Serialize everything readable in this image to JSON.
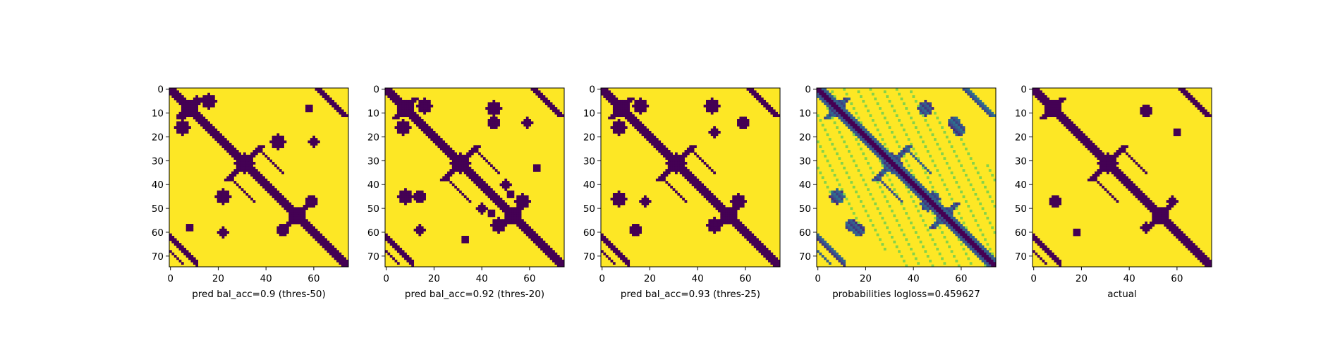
{
  "chart_data": [
    {
      "type": "heatmap",
      "xlabel": "pred bal_acc=0.9 (thres-50)",
      "matrix_size": 75,
      "colormap": "viridis-binary",
      "xticks": [
        0,
        20,
        40,
        60
      ],
      "yticks": [
        0,
        10,
        20,
        30,
        40,
        50,
        60,
        70
      ],
      "xlim": [
        0,
        75
      ],
      "ylim": [
        75,
        0
      ],
      "spurious_blobs": [
        [
          16,
          5,
          3
        ],
        [
          11,
          5,
          2
        ],
        [
          59,
          47,
          2.5
        ],
        [
          45,
          22,
          3
        ],
        [
          60,
          22,
          2
        ],
        [
          58,
          8,
          1.5
        ]
      ]
    },
    {
      "type": "heatmap",
      "xlabel": "pred bal_acc=0.92 (thres-20)",
      "matrix_size": 75,
      "colormap": "viridis-binary",
      "xticks": [
        0,
        20,
        40,
        60
      ],
      "yticks": [
        0,
        10,
        20,
        30,
        40,
        50,
        60,
        70
      ],
      "xlim": [
        0,
        75
      ],
      "ylim": [
        75,
        0
      ],
      "spurious_blobs": [
        [
          16,
          7,
          3
        ],
        [
          45,
          8,
          3
        ],
        [
          59,
          14,
          2
        ],
        [
          57,
          47,
          3
        ],
        [
          45,
          14,
          2.5
        ],
        [
          50,
          40,
          2
        ],
        [
          40,
          50,
          2
        ],
        [
          44,
          52,
          1.5
        ],
        [
          63,
          33,
          1.5
        ]
      ]
    },
    {
      "type": "heatmap",
      "xlabel": "pred bal_acc=0.93 (thres-25)",
      "matrix_size": 75,
      "colormap": "viridis-binary",
      "xticks": [
        0,
        20,
        40,
        60
      ],
      "yticks": [
        0,
        10,
        20,
        30,
        40,
        50,
        60,
        70
      ],
      "xlim": [
        0,
        75
      ],
      "ylim": [
        75,
        0
      ],
      "spurious_blobs": [
        [
          16,
          7,
          3
        ],
        [
          59,
          14,
          2.5
        ],
        [
          57,
          47,
          3
        ],
        [
          46,
          7,
          3
        ],
        [
          47,
          18,
          2
        ]
      ]
    },
    {
      "type": "heatmap",
      "xlabel": "probabilities logloss=0.459627",
      "matrix_size": 75,
      "colormap": "viridis",
      "xticks": [
        0,
        20,
        40,
        60
      ],
      "yticks": [
        0,
        10,
        20,
        30,
        40,
        50,
        60,
        70
      ],
      "xlim": [
        0,
        75
      ],
      "ylim": [
        75,
        0
      ],
      "spurious_blobs": [
        [
          45,
          8,
          3
        ],
        [
          48,
          46,
          3
        ],
        [
          59,
          17,
          2.5
        ],
        [
          14,
          57,
          2.5
        ]
      ]
    },
    {
      "type": "heatmap",
      "xlabel": "actual",
      "matrix_size": 75,
      "colormap": "viridis-binary",
      "xticks": [
        0,
        20,
        40,
        60
      ],
      "yticks": [
        0,
        10,
        20,
        30,
        40,
        50,
        60,
        70
      ],
      "xlim": [
        0,
        75
      ],
      "ylim": [
        75,
        0
      ],
      "spurious_blobs": [
        [
          47,
          9,
          2.5
        ],
        [
          60,
          18,
          1.5
        ],
        [
          58,
          47,
          2
        ]
      ]
    }
  ],
  "colors": {
    "low": "#440154",
    "high": "#fde725"
  }
}
